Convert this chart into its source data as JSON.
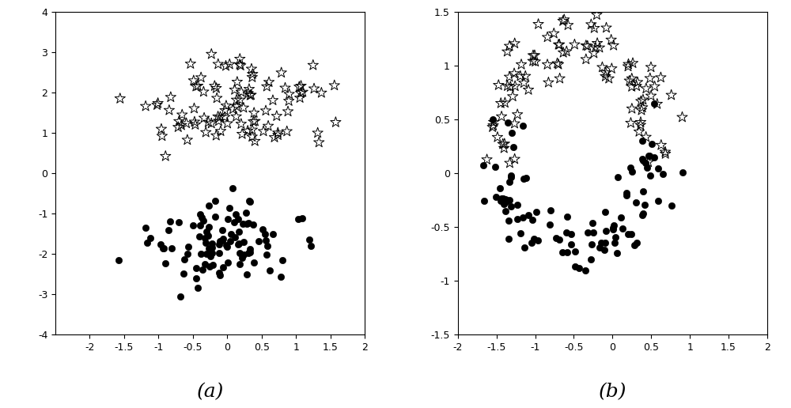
{
  "title_a": "(a)",
  "title_b": "(b)",
  "xlim_a": [
    -2.5,
    2.0
  ],
  "ylim_a": [
    -4.0,
    4.0
  ],
  "xlim_b": [
    -2.0,
    2.0
  ],
  "ylim_b": [
    -1.5,
    1.5
  ],
  "xticks_a": [
    -2.0,
    -1.5,
    -1.0,
    -0.5,
    0.0,
    0.5,
    1.0,
    1.5,
    2.0
  ],
  "xtick_labels_a": [
    "-2",
    "-1.5",
    "-1",
    "-0.5",
    "0",
    "0.5",
    "1",
    "1.5",
    "2"
  ],
  "yticks_a": [
    -4,
    -3,
    -2,
    -1,
    0,
    1,
    2,
    3,
    4
  ],
  "ytick_labels_a": [
    "-4",
    "-3",
    "-2",
    "-1",
    "0",
    "1",
    "2",
    "3",
    "4"
  ],
  "xticks_b": [
    -2.0,
    -1.5,
    -1.0,
    -0.5,
    0.0,
    0.5,
    1.0,
    1.5,
    2.0
  ],
  "xtick_labels_b": [
    "-2",
    "-1.5",
    "-1",
    "-0.5",
    "0",
    "0.5",
    "1",
    "1.5",
    "2"
  ],
  "yticks_b": [
    -1.5,
    -1.0,
    -0.5,
    0.0,
    0.5,
    1.0,
    1.5
  ],
  "ytick_labels_b": [
    "-1.5",
    "-1",
    "-0.5",
    "0",
    "0.5",
    "1",
    "1.5"
  ],
  "star_color": "black",
  "dot_color": "black",
  "background_color": "white",
  "fig_width": 10.0,
  "fig_height": 5.16,
  "label_fontsize": 18,
  "tick_fontsize": 9,
  "star_size": 100,
  "dot_size": 35,
  "n_samples": 200
}
